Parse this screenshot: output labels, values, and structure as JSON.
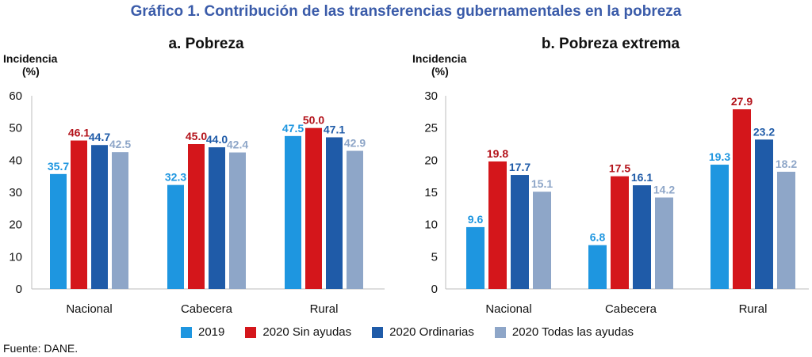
{
  "title": "Gráfico 1. Contribución de las transferencias gubernamentales en la pobreza",
  "source": "Fuente: DANE.",
  "colors": {
    "2019": "#1e96e0",
    "2020 Sin ayudas": "#d4161b",
    "2020 Ordinarias": "#1f5ba8",
    "2020 Todas las ayudas": "#8ea6c8"
  },
  "legend": [
    "2019",
    "2020 Sin ayudas",
    "2020 Ordinarias",
    "2020 Todas las ayudas"
  ],
  "chart_data": [
    {
      "type": "bar",
      "title": "a. Pobreza",
      "ylabel_line1": "Incidencia",
      "ylabel_line2": "(%)",
      "ylim": [
        0,
        60
      ],
      "yticks": [
        0,
        10,
        20,
        30,
        40,
        50,
        60
      ],
      "categories": [
        "Nacional",
        "Cabecera",
        "Rural"
      ],
      "series": [
        {
          "name": "2019",
          "values": [
            35.7,
            32.3,
            47.5
          ]
        },
        {
          "name": "2020 Sin ayudas",
          "values": [
            46.1,
            45.0,
            50.0
          ]
        },
        {
          "name": "2020 Ordinarias",
          "values": [
            44.7,
            44.0,
            47.1
          ]
        },
        {
          "name": "2020 Todas las ayudas",
          "values": [
            42.5,
            42.4,
            42.9
          ]
        }
      ]
    },
    {
      "type": "bar",
      "title": "b. Pobreza extrema",
      "ylabel_line1": "Incidencia",
      "ylabel_line2": "(%)",
      "ylim": [
        0,
        30
      ],
      "yticks": [
        0,
        5,
        10,
        15,
        20,
        25,
        30
      ],
      "categories": [
        "Nacional",
        "Cabecera",
        "Rural"
      ],
      "series": [
        {
          "name": "2019",
          "values": [
            9.6,
            6.8,
            19.3
          ]
        },
        {
          "name": "2020 Sin ayudas",
          "values": [
            19.8,
            17.5,
            27.9
          ]
        },
        {
          "name": "2020 Ordinarias",
          "values": [
            17.7,
            16.1,
            23.2
          ]
        },
        {
          "name": "2020 Todas las ayudas",
          "values": [
            15.1,
            14.2,
            18.2
          ]
        }
      ]
    }
  ]
}
